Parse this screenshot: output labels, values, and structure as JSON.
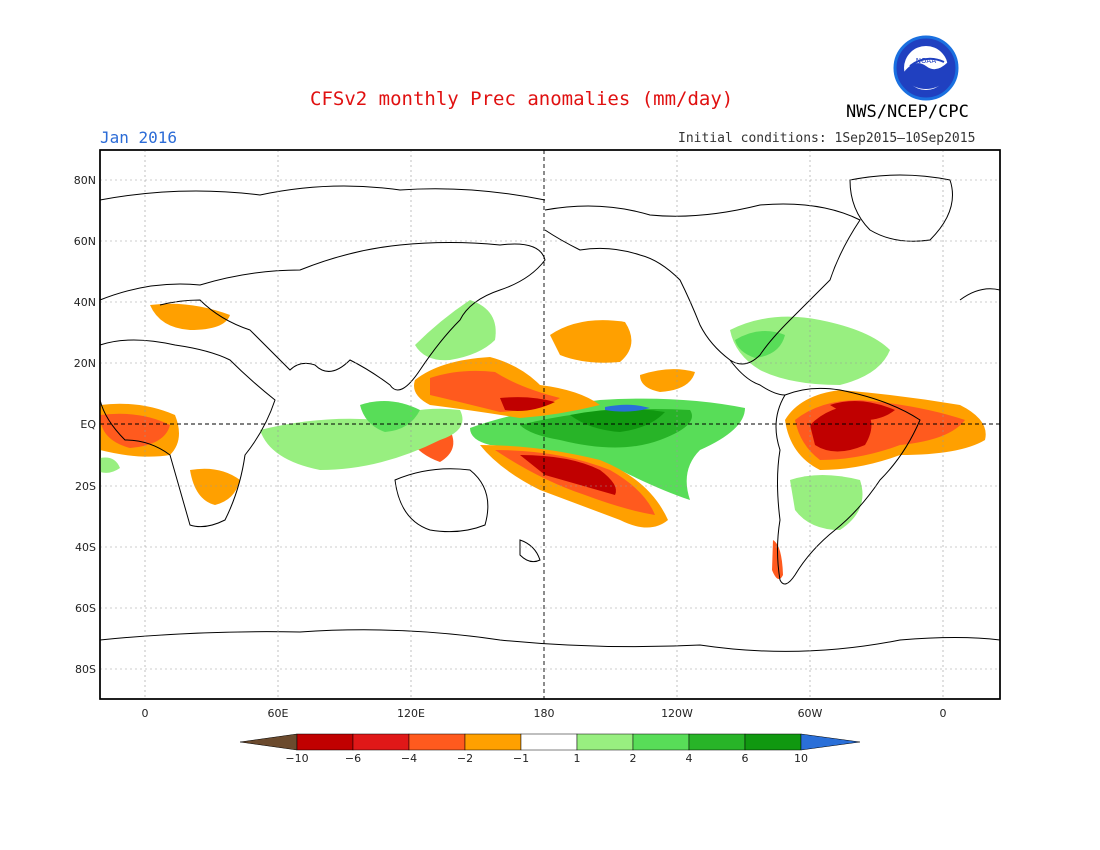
{
  "title": "CFSv2 monthly Prec anomalies (mm/day)",
  "org": "NWS/NCEP/CPC",
  "logo_text": "NOAA",
  "month": "Jan 2016",
  "initial_conditions": "Initial conditions: 1Sep2015—10Sep2015",
  "lat_labels": [
    "80N",
    "60N",
    "40N",
    "20N",
    "EQ",
    "20S",
    "40S",
    "60S",
    "80S"
  ],
  "lon_labels": [
    "0",
    "60E",
    "120E",
    "180",
    "120W",
    "60W",
    "0"
  ],
  "colorbar": {
    "labels": [
      "−10",
      "−6",
      "−4",
      "−2",
      "−1",
      "1",
      "2",
      "4",
      "6",
      "10"
    ],
    "colors": [
      "#6b4a2d",
      "#c00000",
      "#e01818",
      "#ff5a1e",
      "#ffa000",
      "#ffffff",
      "#98ef80",
      "#58dd58",
      "#28b428",
      "#109810",
      "#2a6fd8"
    ]
  }
}
